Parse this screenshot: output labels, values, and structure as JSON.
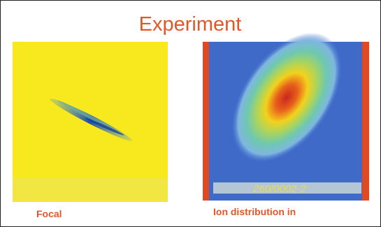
{
  "title": "Experiment",
  "panels": [
    {
      "caption": "Focal"
    },
    {
      "caption": "Ion distribution in",
      "image_note": "260/0002-2"
    }
  ]
}
